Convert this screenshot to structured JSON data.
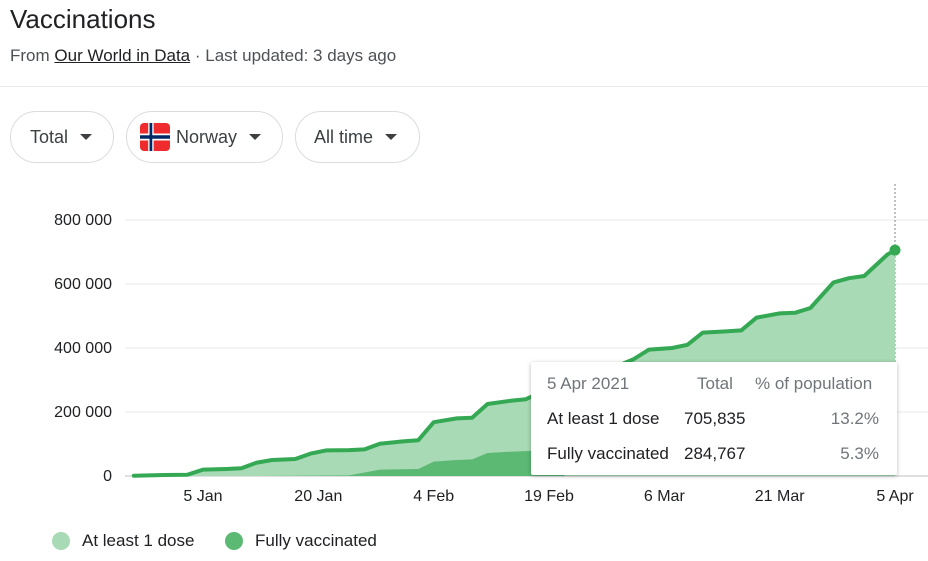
{
  "header": {
    "title": "Vaccinations",
    "source_prefix": "From",
    "source_link": "Our World in Data",
    "updated": "· Last updated: 3 days ago"
  },
  "filters": {
    "metric": "Total",
    "country": "Norway",
    "range": "All time"
  },
  "tooltip": {
    "date": "5 Apr 2021",
    "col_total": "Total",
    "col_pct": "% of population",
    "rows": [
      {
        "label": "At least 1 dose",
        "total": "705,835",
        "pct": "13.2%"
      },
      {
        "label": "Fully vaccinated",
        "total": "284,767",
        "pct": "5.3%"
      }
    ]
  },
  "legend": [
    {
      "label": "At least 1 dose",
      "color": "#a8dab5"
    },
    {
      "label": "Fully vaccinated",
      "color": "#5bb974"
    }
  ],
  "colors": {
    "dose1_fill": "#a8dab5",
    "full_fill": "#5bb974",
    "line": "#34a853",
    "grid": "#e8eaed",
    "text": "#202124"
  },
  "chart_data": {
    "type": "area",
    "x_ticks": [
      "5 Jan",
      "20 Jan",
      "4 Feb",
      "19 Feb",
      "6 Mar",
      "21 Mar",
      "5 Apr"
    ],
    "y_ticks": [
      "0",
      "200 000",
      "400 000",
      "600 000",
      "800 000"
    ],
    "ylim": [
      0,
      800000
    ],
    "series": [
      {
        "name": "At least 1 dose",
        "x": [
          "2020-12-27",
          "2020-12-31",
          "2021-01-03",
          "2021-01-05",
          "2021-01-08",
          "2021-01-10",
          "2021-01-12",
          "2021-01-14",
          "2021-01-17",
          "2021-01-19",
          "2021-01-21",
          "2021-01-24",
          "2021-01-26",
          "2021-01-28",
          "2021-01-31",
          "2021-02-02",
          "2021-02-04",
          "2021-02-07",
          "2021-02-09",
          "2021-02-11",
          "2021-02-14",
          "2021-02-16",
          "2021-02-18",
          "2021-02-21",
          "2021-02-23",
          "2021-02-25",
          "2021-02-28",
          "2021-03-02",
          "2021-03-04",
          "2021-03-07",
          "2021-03-09",
          "2021-03-11",
          "2021-03-14",
          "2021-03-16",
          "2021-03-18",
          "2021-03-21",
          "2021-03-23",
          "2021-03-25",
          "2021-03-28",
          "2021-03-30",
          "2021-04-01",
          "2021-04-04",
          "2021-04-05"
        ],
        "values": [
          1000,
          3000,
          4000,
          20000,
          22000,
          24000,
          42000,
          50000,
          53000,
          70000,
          80000,
          81000,
          83000,
          101000,
          108000,
          112000,
          168000,
          180000,
          182000,
          225000,
          235000,
          240000,
          262000,
          282000,
          295000,
          325000,
          345000,
          365000,
          395000,
          400000,
          410000,
          448000,
          452000,
          455000,
          495000,
          508000,
          510000,
          525000,
          605000,
          618000,
          625000,
          692000,
          705835
        ]
      },
      {
        "name": "Fully vaccinated",
        "x": [
          "2021-01-12",
          "2021-01-24",
          "2021-01-28",
          "2021-01-31",
          "2021-02-02",
          "2021-02-04",
          "2021-02-07",
          "2021-02-09",
          "2021-02-11",
          "2021-02-14",
          "2021-02-18",
          "2021-02-21"
        ],
        "values": [
          0,
          2000,
          20000,
          21000,
          22000,
          45000,
          50000,
          52000,
          72000,
          76000,
          80000,
          86000
        ]
      }
    ]
  }
}
